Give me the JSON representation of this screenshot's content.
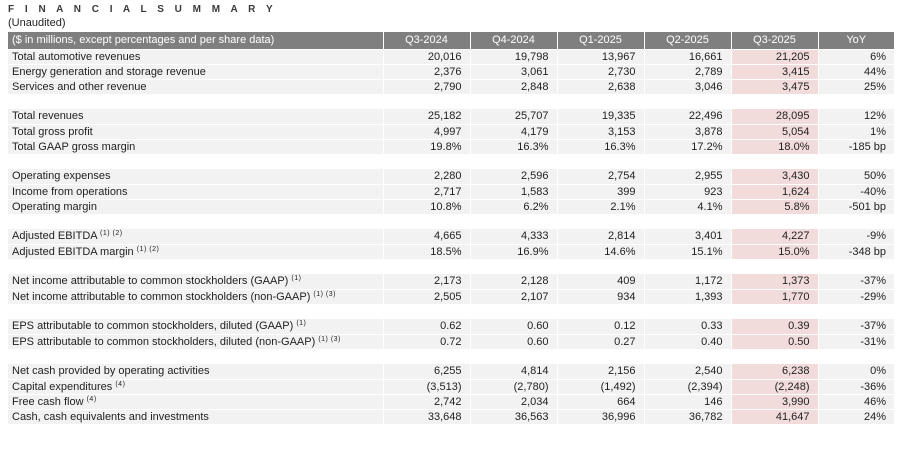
{
  "header": {
    "title": "F I N A N C I A L   S U M M A R Y",
    "subtitle": "(Unaudited)"
  },
  "colors": {
    "header_bg": "#7f7f7f",
    "header_text": "#ffffff",
    "row_bg": "#f2f2f2",
    "highlight_bg": "#f2dcdb",
    "body_text": "#1f1f1f"
  },
  "table": {
    "label_header": "($ in millions, except percentages and per share data)",
    "columns": [
      "Q3-2024",
      "Q4-2024",
      "Q1-2025",
      "Q2-2025",
      "Q3-2025",
      "YoY"
    ],
    "highlight_column": "Q3-2025",
    "highlight_index": 4,
    "sections": [
      [
        {
          "label": "Total automotive revenues",
          "sup": "",
          "values": [
            "20,016",
            "19,798",
            "13,967",
            "16,661",
            "21,205",
            "6%"
          ]
        },
        {
          "label": "Energy generation and storage revenue",
          "sup": "",
          "values": [
            "2,376",
            "3,061",
            "2,730",
            "2,789",
            "3,415",
            "44%"
          ]
        },
        {
          "label": "Services and other revenue",
          "sup": "",
          "values": [
            "2,790",
            "2,848",
            "2,638",
            "3,046",
            "3,475",
            "25%"
          ]
        }
      ],
      [
        {
          "label": "Total revenues",
          "sup": "",
          "values": [
            "25,182",
            "25,707",
            "19,335",
            "22,496",
            "28,095",
            "12%"
          ]
        },
        {
          "label": "Total gross profit",
          "sup": "",
          "values": [
            "4,997",
            "4,179",
            "3,153",
            "3,878",
            "5,054",
            "1%"
          ]
        },
        {
          "label": "Total GAAP gross margin",
          "sup": "",
          "values": [
            "19.8%",
            "16.3%",
            "16.3%",
            "17.2%",
            "18.0%",
            "-185 bp"
          ]
        }
      ],
      [
        {
          "label": "Operating expenses",
          "sup": "",
          "values": [
            "2,280",
            "2,596",
            "2,754",
            "2,955",
            "3,430",
            "50%"
          ]
        },
        {
          "label": "Income from operations",
          "sup": "",
          "values": [
            "2,717",
            "1,583",
            "399",
            "923",
            "1,624",
            "-40%"
          ]
        },
        {
          "label": "Operating margin",
          "sup": "",
          "values": [
            "10.8%",
            "6.2%",
            "2.1%",
            "4.1%",
            "5.8%",
            "-501 bp"
          ]
        }
      ],
      [
        {
          "label": "Adjusted EBITDA",
          "sup": "(1) (2)",
          "values": [
            "4,665",
            "4,333",
            "2,814",
            "3,401",
            "4,227",
            "-9%"
          ]
        },
        {
          "label": "Adjusted EBITDA margin",
          "sup": "(1) (2)",
          "values": [
            "18.5%",
            "16.9%",
            "14.6%",
            "15.1%",
            "15.0%",
            "-348 bp"
          ]
        }
      ],
      [
        {
          "label": "Net income attributable to common stockholders (GAAP)",
          "sup": "(1)",
          "values": [
            "2,173",
            "2,128",
            "409",
            "1,172",
            "1,373",
            "-37%"
          ]
        },
        {
          "label": "Net income attributable to common stockholders (non-GAAP)",
          "sup": "(1) (3)",
          "values": [
            "2,505",
            "2,107",
            "934",
            "1,393",
            "1,770",
            "-29%"
          ]
        }
      ],
      [
        {
          "label": "EPS attributable to common stockholders, diluted (GAAP)",
          "sup": "(1)",
          "values": [
            "0.62",
            "0.60",
            "0.12",
            "0.33",
            "0.39",
            "-37%"
          ]
        },
        {
          "label": "EPS attributable to common stockholders, diluted (non-GAAP)",
          "sup": "(1) (3)",
          "values": [
            "0.72",
            "0.60",
            "0.27",
            "0.40",
            "0.50",
            "-31%"
          ]
        }
      ],
      [
        {
          "label": "Net cash provided by operating activities",
          "sup": "",
          "values": [
            "6,255",
            "4,814",
            "2,156",
            "2,540",
            "6,238",
            "0%"
          ]
        },
        {
          "label": "Capital expenditures",
          "sup": "(4)",
          "values": [
            "(3,513)",
            "(2,780)",
            "(1,492)",
            "(2,394)",
            "(2,248)",
            "-36%"
          ]
        },
        {
          "label": "Free cash flow",
          "sup": "(4)",
          "values": [
            "2,742",
            "2,034",
            "664",
            "146",
            "3,990",
            "46%"
          ]
        },
        {
          "label": "Cash, cash equivalents and investments",
          "sup": "",
          "values": [
            "33,648",
            "36,563",
            "36,996",
            "36,782",
            "41,647",
            "24%"
          ]
        }
      ]
    ]
  }
}
